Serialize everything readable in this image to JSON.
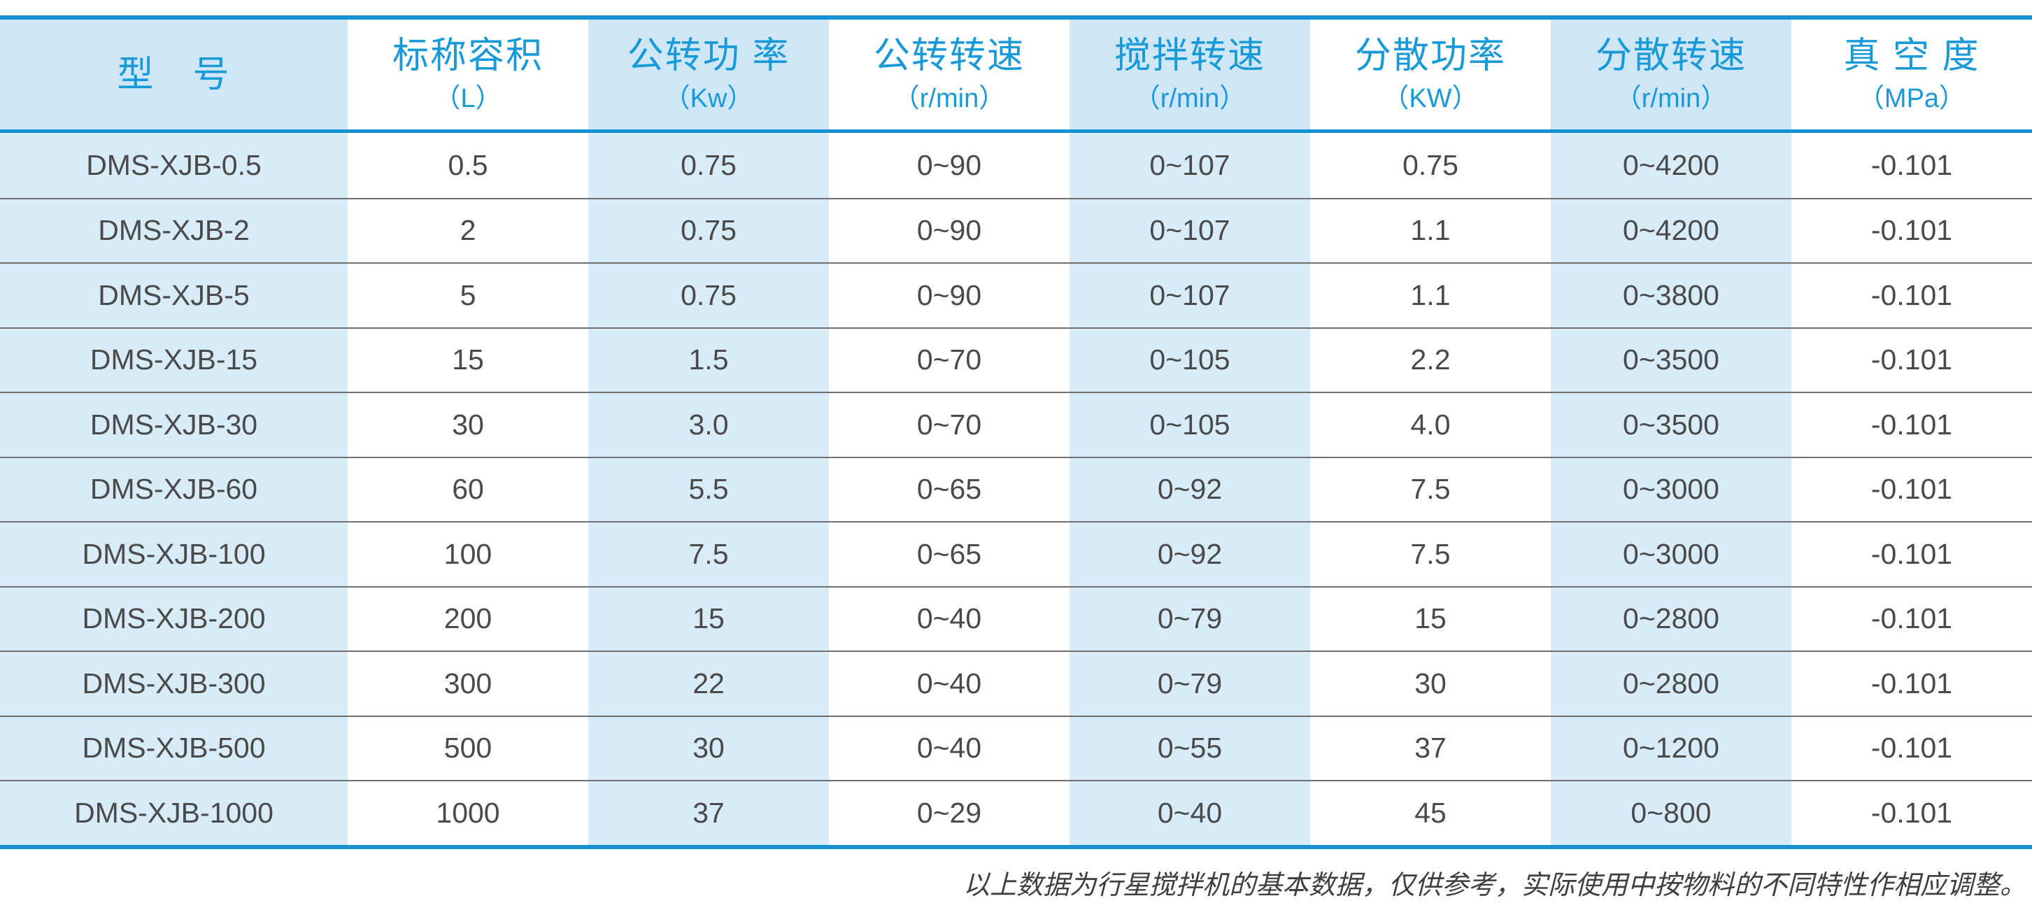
{
  "chart_data": {
    "type": "table",
    "columns": [
      {
        "label": "型　号",
        "unit": ""
      },
      {
        "label": "标称容积",
        "unit": "（L）"
      },
      {
        "label": "公转功 率",
        "unit": "（Kw）"
      },
      {
        "label": "公转转速",
        "unit": "（r/min）"
      },
      {
        "label": "搅拌转速",
        "unit": "（r/min）"
      },
      {
        "label": "分散功率",
        "unit": "（KW）"
      },
      {
        "label": "分散转速",
        "unit": "（r/min）"
      },
      {
        "label": "真 空 度",
        "unit": "（MPa）"
      }
    ],
    "rows": [
      [
        "DMS-XJB-0.5",
        "0.5",
        "0.75",
        "0~90",
        "0~107",
        "0.75",
        "0~4200",
        "-0.101"
      ],
      [
        "DMS-XJB-2",
        "2",
        "0.75",
        "0~90",
        "0~107",
        "1.1",
        "0~4200",
        "-0.101"
      ],
      [
        "DMS-XJB-5",
        "5",
        "0.75",
        "0~90",
        "0~107",
        "1.1",
        "0~3800",
        "-0.101"
      ],
      [
        "DMS-XJB-15",
        "15",
        "1.5",
        "0~70",
        "0~105",
        "2.2",
        "0~3500",
        "-0.101"
      ],
      [
        "DMS-XJB-30",
        "30",
        "3.0",
        "0~70",
        "0~105",
        "4.0",
        "0~3500",
        "-0.101"
      ],
      [
        "DMS-XJB-60",
        "60",
        "5.5",
        "0~65",
        "0~92",
        "7.5",
        "0~3000",
        "-0.101"
      ],
      [
        "DMS-XJB-100",
        "100",
        "7.5",
        "0~65",
        "0~92",
        "7.5",
        "0~3000",
        "-0.101"
      ],
      [
        "DMS-XJB-200",
        "200",
        "15",
        "0~40",
        "0~79",
        "15",
        "0~2800",
        "-0.101"
      ],
      [
        "DMS-XJB-300",
        "300",
        "22",
        "0~40",
        "0~79",
        "30",
        "0~2800",
        "-0.101"
      ],
      [
        "DMS-XJB-500",
        "500",
        "30",
        "0~40",
        "0~55",
        "37",
        "0~1200",
        "-0.101"
      ],
      [
        "DMS-XJB-1000",
        "1000",
        "37",
        "0~29",
        "0~40",
        "45",
        "0~800",
        "-0.101"
      ]
    ],
    "footnote": "以上数据为行星搅拌机的基本数据，仅供参考，实际使用中按物料的不同特性作相应调整。"
  },
  "colors": {
    "rule_blue": "#1590d2",
    "header_band_blue": "#cfe6f7",
    "body_band_blue": "#d8ebf9",
    "header_text_blue": "#1899d8",
    "body_text": "#4a4a4a",
    "row_separator": "#707070"
  }
}
